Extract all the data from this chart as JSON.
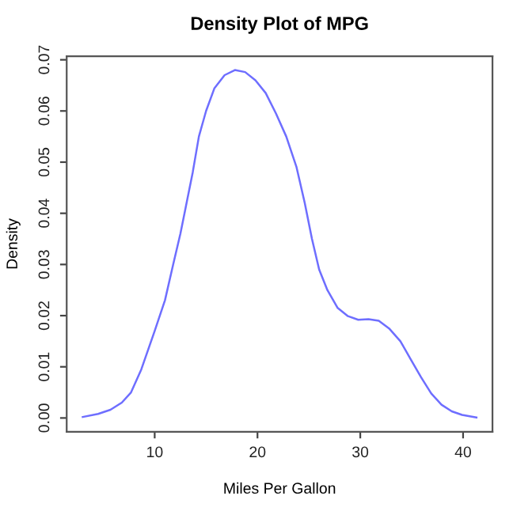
{
  "chart_data": {
    "type": "line",
    "title": "Density Plot of MPG",
    "xlabel": "Miles Per Gallon",
    "ylabel": "Density",
    "x": [
      3.0,
      4.5,
      5.7,
      6.8,
      7.7,
      8.7,
      10.0,
      11.0,
      11.8,
      12.5,
      13.0,
      13.7,
      14.3,
      15.0,
      15.8,
      16.8,
      17.8,
      18.8,
      19.8,
      20.8,
      21.8,
      22.8,
      23.8,
      24.6,
      25.3,
      26.0,
      26.8,
      27.8,
      28.8,
      29.8,
      30.8,
      31.8,
      32.8,
      33.9,
      34.9,
      35.9,
      36.9,
      37.9,
      38.9,
      39.9,
      41.3
    ],
    "series": [
      {
        "color": "#6e6eff",
        "values": [
          0.0002,
          0.0008,
          0.0016,
          0.003,
          0.005,
          0.0095,
          0.017,
          0.023,
          0.03,
          0.036,
          0.041,
          0.048,
          0.055,
          0.06,
          0.0644,
          0.067,
          0.068,
          0.0676,
          0.066,
          0.0635,
          0.0595,
          0.055,
          0.049,
          0.042,
          0.035,
          0.029,
          0.025,
          0.0215,
          0.0199,
          0.0192,
          0.0193,
          0.019,
          0.0175,
          0.015,
          0.0115,
          0.008,
          0.0048,
          0.0026,
          0.0013,
          0.0006,
          0.0001
        ]
      }
    ],
    "xlim": [
      1.44,
      42.86
    ],
    "ylim": [
      -0.0027,
      0.0707
    ],
    "xticks": [
      10,
      20,
      30,
      40
    ],
    "yticks": [
      {
        "value": 0,
        "label": "0.00"
      },
      {
        "value": 0.01,
        "label": "0.01"
      },
      {
        "value": 0.02,
        "label": "0.02"
      },
      {
        "value": 0.03,
        "label": "0.03"
      },
      {
        "value": 0.04,
        "label": "0.04"
      },
      {
        "value": 0.05,
        "label": "0.05"
      },
      {
        "value": 0.06,
        "label": "0.06"
      },
      {
        "value": 0.07,
        "label": "0.07"
      }
    ],
    "grid": false,
    "legend": false
  }
}
